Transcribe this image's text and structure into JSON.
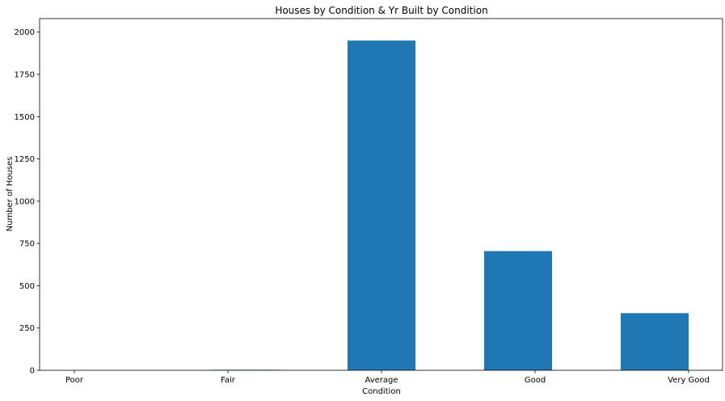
{
  "chart_data": {
    "type": "bar",
    "title": "Houses by Condition & Yr Built by Condition",
    "xlabel": "Condition",
    "ylabel": "Number of Houses",
    "categories": [
      "Poor",
      "Fair",
      "Average",
      "Good",
      "Very Good"
    ],
    "values": [
      0,
      3,
      1950,
      705,
      338
    ],
    "ylim": [
      0,
      2080
    ],
    "yticks": [
      0,
      250,
      500,
      750,
      1000,
      1250,
      1500,
      1750,
      2000
    ],
    "bar_color": "#1f77b4",
    "grid": false,
    "legend": "none"
  }
}
